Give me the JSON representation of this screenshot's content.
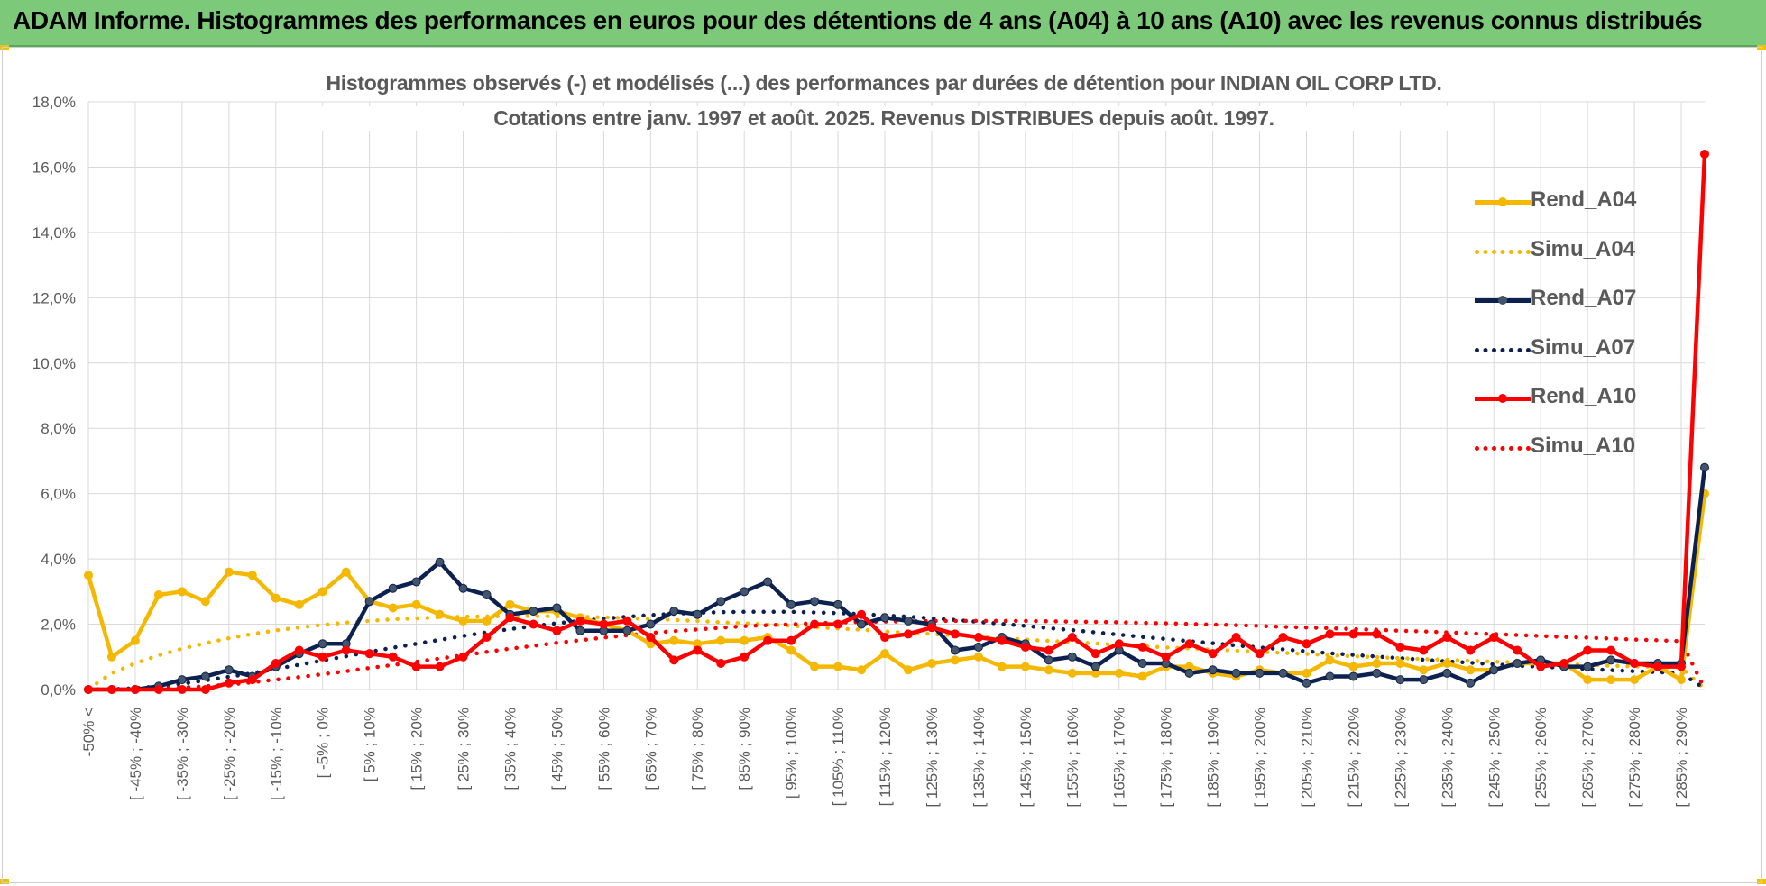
{
  "banner": {
    "title": "ADAM Informe. Histogrammes des performances en euros pour des détentions de 4 ans (A04) à 10 ans (A10) avec les revenus connus distribués"
  },
  "colors": {
    "banner_bg": "#7cc97a",
    "A04": "#f5b800",
    "A07": "#0d2150",
    "A10": "#ff0000",
    "grid": "#d9d9d9",
    "text": "#595959"
  },
  "chart_data": {
    "type": "line",
    "title": "Histogrammes observés (-) et modélisés (...) des performances par durées de détention pour INDIAN OIL CORP LTD.",
    "subtitle": "Cotations entre janv. 1997 et août. 2025. Revenus DISTRIBUES depuis août. 1997.",
    "xlabel": "",
    "ylabel": "",
    "ylim": [
      0,
      18
    ],
    "y_ticks": [
      "0,0%",
      "2,0%",
      "4,0%",
      "6,0%",
      "8,0%",
      "10,0%",
      "12,0%",
      "14,0%",
      "16,0%",
      "18,0%"
    ],
    "grid": true,
    "legend_position": "right",
    "x_labels": [
      "-50% <",
      "[ -45% ; -40%",
      "[ -35% ; -30%",
      "[ -25% ; -20%",
      "[ -15% ; -10%",
      "[ -5% ; 0%",
      "[ 5% ; 10%",
      "[ 15% ; 20%",
      "[ 25% ; 30%",
      "[ 35% ; 40%",
      "[ 45% ; 50%",
      "[ 55% ; 60%",
      "[ 65% ; 70%",
      "[ 75% ; 80%",
      "[ 85% ; 90%",
      "[ 95% ; 100%",
      "[ 105% ; 110%",
      "[ 115% ; 120%",
      "[ 125% ; 130%",
      "[ 135% ; 140%",
      "[ 145% ; 150%",
      "[ 155% ; 160%",
      "[ 165% ; 170%",
      "[ 175% ; 180%",
      "[ 185% ; 190%",
      "[ 195% ; 200%",
      "[ 205% ; 210%",
      "[ 215% ; 220%",
      "[ 225% ; 230%",
      "[ 235% ; 240%",
      "[ 245% ; 250%",
      "[ 255% ; 260%",
      "[ 265% ; 270%",
      "[ 275% ; 280%",
      "[ 285% ; 290%"
    ],
    "x_label_indices": [
      0,
      2,
      4,
      6,
      8,
      10,
      12,
      14,
      16,
      18,
      20,
      22,
      24,
      26,
      28,
      30,
      32,
      34,
      36,
      38,
      40,
      42,
      44,
      46,
      48,
      50,
      52,
      54,
      56,
      58,
      60,
      62,
      64,
      66,
      68
    ],
    "n_points": 70,
    "series": [
      {
        "name": "Rend_A04",
        "style": "solid",
        "marker": true,
        "color": "#f5b800",
        "values": [
          3.5,
          1.0,
          1.5,
          2.9,
          3.0,
          2.7,
          3.6,
          3.5,
          2.8,
          2.6,
          3.0,
          3.6,
          2.7,
          2.5,
          2.6,
          2.3,
          2.1,
          2.1,
          2.6,
          2.4,
          2.4,
          2.2,
          2.0,
          1.8,
          1.4,
          1.5,
          1.4,
          1.5,
          1.5,
          1.6,
          1.2,
          0.7,
          0.7,
          0.6,
          1.1,
          0.6,
          0.8,
          0.9,
          1.0,
          0.7,
          0.7,
          0.6,
          0.5,
          0.5,
          0.5,
          0.4,
          0.7,
          0.7,
          0.5,
          0.4,
          0.6,
          0.5,
          0.5,
          0.9,
          0.7,
          0.8,
          0.8,
          0.6,
          0.8,
          0.6,
          0.6,
          0.8,
          0.8,
          0.8,
          0.3,
          0.3,
          0.3,
          0.7,
          0.3,
          6.0
        ]
      },
      {
        "name": "Simu_A04",
        "style": "dotted",
        "marker": false,
        "color": "#f5b800",
        "values": [
          0.02,
          0.5,
          0.8,
          1.05,
          1.25,
          1.42,
          1.57,
          1.7,
          1.81,
          1.9,
          1.98,
          2.05,
          2.1,
          2.15,
          2.18,
          2.21,
          2.23,
          2.24,
          2.25,
          2.25,
          2.24,
          2.23,
          2.21,
          2.19,
          2.16,
          2.13,
          2.1,
          2.06,
          2.03,
          1.99,
          1.95,
          1.91,
          1.87,
          1.83,
          1.78,
          1.74,
          1.7,
          1.66,
          1.61,
          1.57,
          1.53,
          1.49,
          1.45,
          1.41,
          1.37,
          1.33,
          1.29,
          1.26,
          1.22,
          1.19,
          1.15,
          1.12,
          1.09,
          1.05,
          1.02,
          0.99,
          0.96,
          0.93,
          0.91,
          0.88,
          0.85,
          0.83,
          0.8,
          0.78,
          0.76,
          0.73,
          0.71,
          0.69,
          0.67,
          0.02
        ]
      },
      {
        "name": "Rend_A07",
        "style": "solid",
        "marker": true,
        "color": "#0d2150",
        "values": [
          0.0,
          0.0,
          0.0,
          0.1,
          0.3,
          0.4,
          0.6,
          0.4,
          0.7,
          1.1,
          1.4,
          1.4,
          2.7,
          3.1,
          3.3,
          3.9,
          3.1,
          2.9,
          2.3,
          2.4,
          2.5,
          1.8,
          1.8,
          1.8,
          2.0,
          2.4,
          2.3,
          2.7,
          3.0,
          3.3,
          2.6,
          2.7,
          2.6,
          2.0,
          2.2,
          2.1,
          2.0,
          1.2,
          1.3,
          1.6,
          1.4,
          0.9,
          1.0,
          0.7,
          1.2,
          0.8,
          0.8,
          0.5,
          0.6,
          0.5,
          0.5,
          0.5,
          0.2,
          0.4,
          0.4,
          0.5,
          0.3,
          0.3,
          0.5,
          0.2,
          0.6,
          0.8,
          0.9,
          0.7,
          0.7,
          0.9,
          0.8,
          0.8,
          0.8,
          6.8
        ]
      },
      {
        "name": "Simu_A07",
        "style": "dotted",
        "marker": false,
        "color": "#0d2150",
        "values": [
          0.0,
          0.01,
          0.04,
          0.1,
          0.18,
          0.28,
          0.39,
          0.5,
          0.63,
          0.76,
          0.89,
          1.02,
          1.15,
          1.28,
          1.4,
          1.52,
          1.64,
          1.75,
          1.85,
          1.94,
          2.03,
          2.1,
          2.17,
          2.23,
          2.28,
          2.32,
          2.35,
          2.37,
          2.38,
          2.38,
          2.38,
          2.36,
          2.34,
          2.31,
          2.27,
          2.23,
          2.18,
          2.13,
          2.07,
          2.01,
          1.95,
          1.88,
          1.82,
          1.75,
          1.68,
          1.61,
          1.55,
          1.48,
          1.42,
          1.35,
          1.29,
          1.23,
          1.17,
          1.11,
          1.06,
          1.01,
          0.96,
          0.91,
          0.86,
          0.82,
          0.77,
          0.73,
          0.7,
          0.66,
          0.63,
          0.59,
          0.56,
          0.53,
          0.5,
          0.03
        ]
      },
      {
        "name": "Rend_A10",
        "style": "solid",
        "marker": true,
        "color": "#ff0000",
        "values": [
          0.0,
          0.0,
          0.0,
          0.0,
          0.0,
          0.0,
          0.2,
          0.3,
          0.8,
          1.2,
          1.0,
          1.2,
          1.1,
          1.0,
          0.7,
          0.7,
          1.0,
          1.6,
          2.2,
          2.0,
          1.8,
          2.1,
          2.0,
          2.1,
          1.6,
          0.9,
          1.2,
          0.8,
          1.0,
          1.5,
          1.5,
          2.0,
          2.0,
          2.3,
          1.6,
          1.7,
          1.9,
          1.7,
          1.6,
          1.5,
          1.3,
          1.2,
          1.6,
          1.1,
          1.4,
          1.3,
          1.0,
          1.4,
          1.1,
          1.6,
          1.1,
          1.6,
          1.4,
          1.7,
          1.7,
          1.7,
          1.3,
          1.2,
          1.6,
          1.2,
          1.6,
          1.2,
          0.7,
          0.8,
          1.2,
          1.2,
          0.8,
          0.7,
          0.7,
          16.4
        ]
      },
      {
        "name": "Simu_A10",
        "style": "dotted",
        "marker": false,
        "color": "#ff0000",
        "values": [
          0.0,
          0.0,
          0.01,
          0.03,
          0.06,
          0.1,
          0.15,
          0.22,
          0.3,
          0.38,
          0.47,
          0.56,
          0.66,
          0.75,
          0.85,
          0.95,
          1.05,
          1.15,
          1.25,
          1.34,
          1.43,
          1.51,
          1.59,
          1.66,
          1.73,
          1.79,
          1.84,
          1.89,
          1.94,
          1.97,
          2.0,
          2.03,
          2.05,
          2.07,
          2.08,
          2.09,
          2.1,
          2.1,
          2.1,
          2.1,
          2.1,
          2.09,
          2.08,
          2.07,
          2.06,
          2.04,
          2.03,
          2.01,
          1.99,
          1.97,
          1.95,
          1.92,
          1.9,
          1.88,
          1.85,
          1.83,
          1.8,
          1.78,
          1.75,
          1.72,
          1.7,
          1.67,
          1.64,
          1.61,
          1.59,
          1.56,
          1.53,
          1.51,
          1.48,
          0.02
        ]
      }
    ]
  }
}
